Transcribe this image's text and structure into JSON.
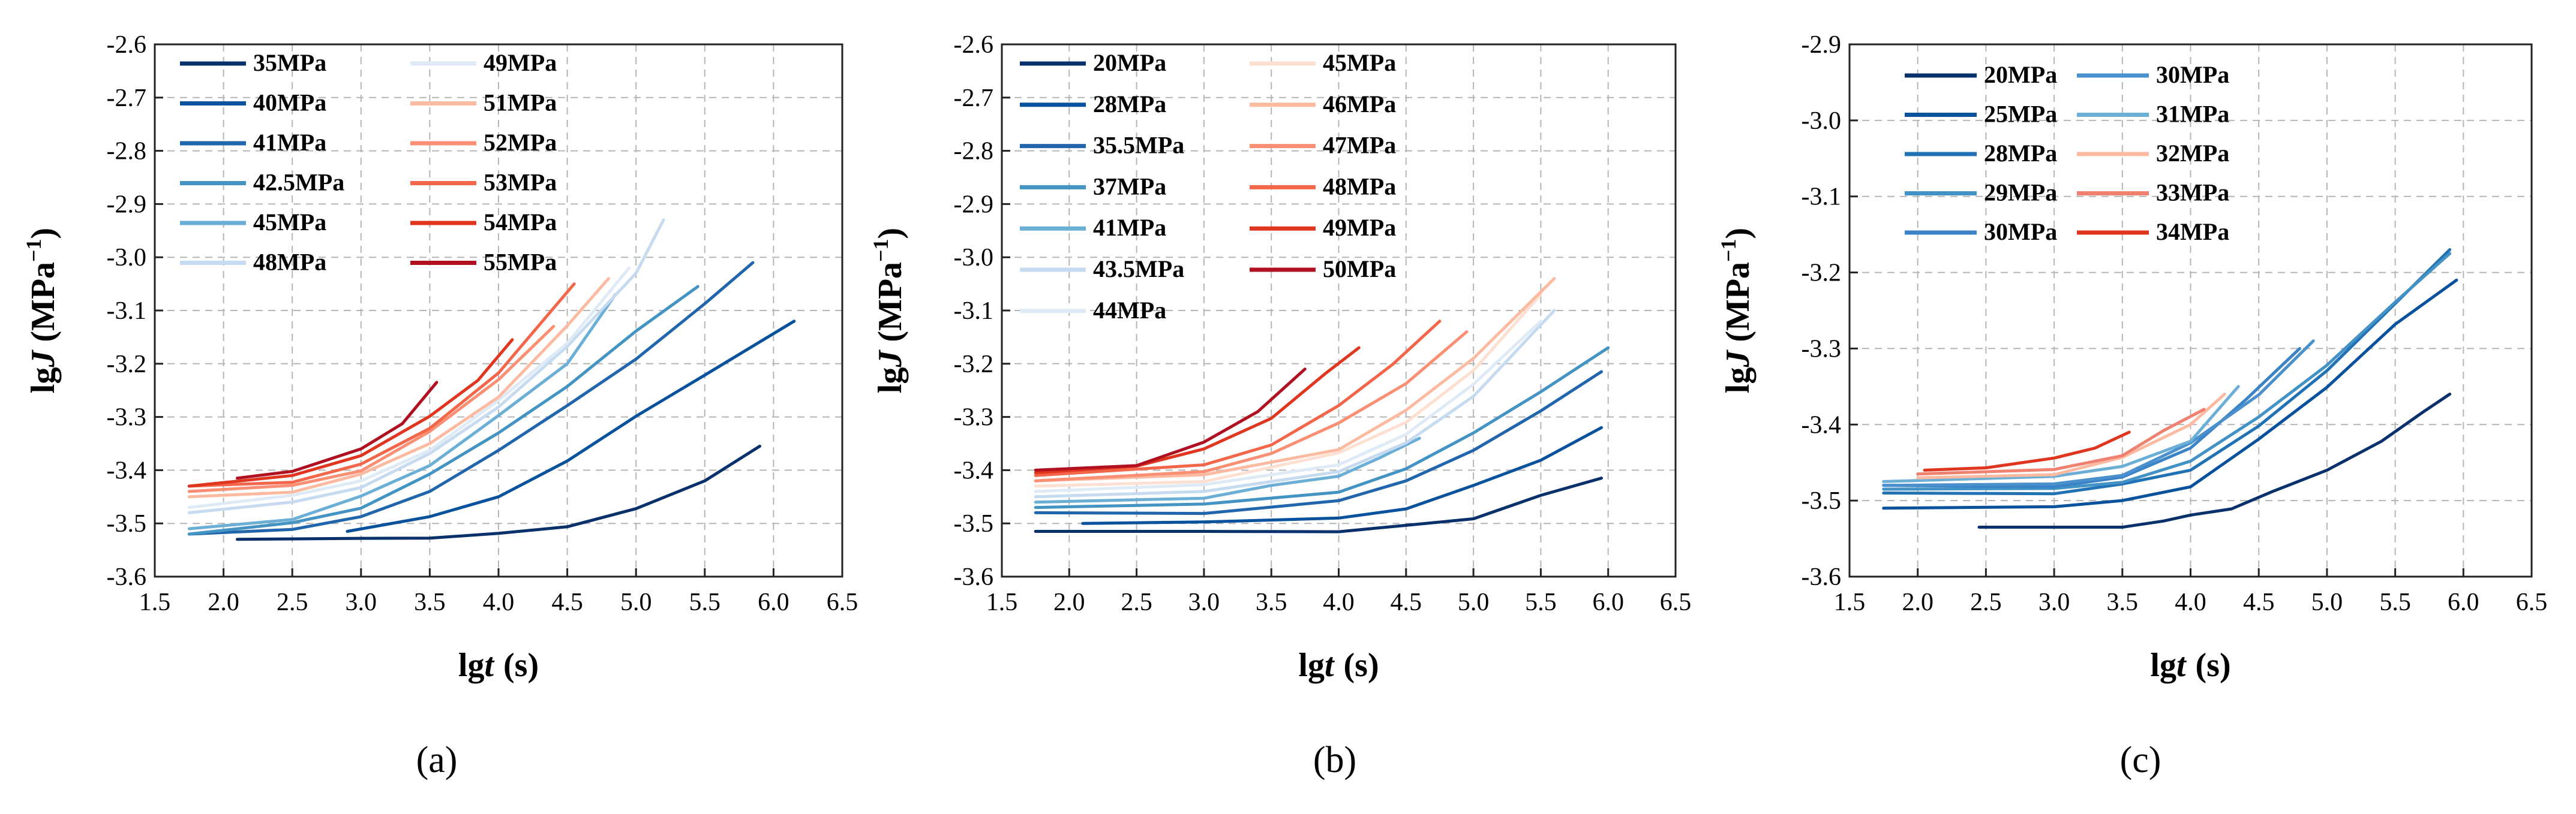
{
  "chart_data": [
    {
      "type": "line",
      "panel_label": "(a)",
      "xlabel_main": "lg",
      "xlabel_var": "t",
      "xlabel_unit": "(s)",
      "ylabel_main": "lg",
      "ylabel_var": "J",
      "ylabel_unit": "(MPa",
      "ylabel_exp": "−1",
      "ylabel_close": ")",
      "xlim": [
        1.5,
        6.5
      ],
      "ylim": [
        -3.6,
        -2.6
      ],
      "xticks": [
        "1.5",
        "2.0",
        "2.5",
        "3.0",
        "3.5",
        "4.0",
        "4.5",
        "5.0",
        "5.5",
        "6.0",
        "6.5"
      ],
      "yticks": [
        "-2.6",
        "-2.7",
        "-2.8",
        "-2.9",
        "-3.0",
        "-3.1",
        "-3.2",
        "-3.3",
        "-3.4",
        "-3.5",
        "-3.6"
      ],
      "legend_columns": 2,
      "legend_position": "top-left",
      "series": [
        {
          "name": "35MPa",
          "color": "#08306b",
          "x": [
            2.1,
            3.0,
            3.5,
            4.0,
            4.5,
            5.0,
            5.5,
            5.9
          ],
          "y": [
            -3.53,
            -3.528,
            -3.525,
            -3.52,
            -3.505,
            -3.475,
            -3.42,
            -3.355
          ]
        },
        {
          "name": "40MPa",
          "color": "#08519c",
          "x": [
            2.9,
            3.5,
            4.0,
            4.5,
            5.0,
            5.5,
            6.15
          ],
          "y": [
            -3.515,
            -3.49,
            -3.45,
            -3.38,
            -3.3,
            -3.22,
            -3.12
          ]
        },
        {
          "name": "41MPa",
          "color": "#2166ac",
          "x": [
            1.75,
            2.5,
            3.0,
            3.5,
            4.0,
            4.5,
            5.0,
            5.5,
            5.85
          ],
          "y": [
            -3.52,
            -3.51,
            -3.49,
            -3.44,
            -3.36,
            -3.28,
            -3.19,
            -3.09,
            -3.01
          ]
        },
        {
          "name": "42.5MPa",
          "color": "#4393c3",
          "x": [
            1.75,
            2.5,
            3.0,
            3.5,
            4.0,
            4.5,
            5.0,
            5.45
          ],
          "y": [
            -3.52,
            -3.5,
            -3.47,
            -3.41,
            -3.33,
            -3.24,
            -3.14,
            -3.055
          ]
        },
        {
          "name": "45MPa",
          "color": "#6baed6",
          "x": [
            1.75,
            2.5,
            3.0,
            3.5,
            4.0,
            4.5,
            4.85
          ],
          "y": [
            -3.51,
            -3.49,
            -3.45,
            -3.39,
            -3.3,
            -3.2,
            -3.07
          ]
        },
        {
          "name": "48MPa",
          "color": "#c6dbef",
          "x": [
            1.75,
            2.5,
            3.0,
            3.5,
            4.0,
            4.5,
            5.0,
            5.2
          ],
          "y": [
            -3.48,
            -3.46,
            -3.43,
            -3.37,
            -3.28,
            -3.17,
            -3.03,
            -2.93
          ]
        },
        {
          "name": "49MPa",
          "color": "#deebf7",
          "x": [
            1.75,
            2.5,
            3.0,
            3.5,
            4.0,
            4.5,
            4.95
          ],
          "y": [
            -3.47,
            -3.45,
            -3.42,
            -3.36,
            -3.27,
            -3.16,
            -3.02
          ]
        },
        {
          "name": "51MPa",
          "color": "#fcbba1",
          "x": [
            1.75,
            2.5,
            3.0,
            3.5,
            4.0,
            4.5,
            4.8
          ],
          "y": [
            -3.45,
            -3.44,
            -3.41,
            -3.35,
            -3.26,
            -3.13,
            -3.04
          ]
        },
        {
          "name": "52MPa",
          "color": "#fb8f73",
          "x": [
            1.75,
            2.5,
            3.0,
            3.5,
            4.0,
            4.4
          ],
          "y": [
            -3.44,
            -3.43,
            -3.4,
            -3.33,
            -3.23,
            -3.13
          ]
        },
        {
          "name": "53MPa",
          "color": "#f4664a",
          "x": [
            1.75,
            2.5,
            3.0,
            3.5,
            4.0,
            4.55
          ],
          "y": [
            -3.43,
            -3.42,
            -3.39,
            -3.32,
            -3.22,
            -3.05
          ]
        },
        {
          "name": "54MPa",
          "color": "#e0351e",
          "x": [
            1.75,
            2.5,
            3.0,
            3.5,
            3.85,
            4.1
          ],
          "y": [
            -3.43,
            -3.41,
            -3.37,
            -3.3,
            -3.23,
            -3.155
          ]
        },
        {
          "name": "55MPa",
          "color": "#b01020",
          "x": [
            2.1,
            2.5,
            3.0,
            3.3,
            3.55
          ],
          "y": [
            -3.415,
            -3.405,
            -3.36,
            -3.31,
            -3.235
          ]
        }
      ]
    },
    {
      "type": "line",
      "panel_label": "(b)",
      "xlabel_main": "lg",
      "xlabel_var": "t",
      "xlabel_unit": "(s)",
      "ylabel_main": "lg",
      "ylabel_var": "J",
      "ylabel_unit": "(MPa",
      "ylabel_exp": "−1",
      "ylabel_close": ")",
      "xlim": [
        1.5,
        6.5
      ],
      "ylim": [
        -3.6,
        -2.6
      ],
      "xticks": [
        "1.5",
        "2.0",
        "2.5",
        "3.0",
        "3.5",
        "4.0",
        "4.5",
        "5.0",
        "5.5",
        "6.0",
        "6.5"
      ],
      "yticks": [
        "-2.6",
        "-2.7",
        "-2.8",
        "-2.9",
        "-3.0",
        "-3.1",
        "-3.2",
        "-3.3",
        "-3.4",
        "-3.5",
        "-3.6"
      ],
      "legend_columns": 2,
      "legend_position": "top-left",
      "series": [
        {
          "name": "20MPa",
          "color": "#08306b",
          "x": [
            1.75,
            3.0,
            4.0,
            4.5,
            5.0,
            5.5,
            5.95
          ],
          "y": [
            -3.515,
            -3.515,
            -3.513,
            -3.505,
            -3.49,
            -3.45,
            -3.415
          ]
        },
        {
          "name": "28MPa",
          "color": "#08519c",
          "x": [
            2.1,
            3.0,
            4.0,
            4.5,
            5.0,
            5.5,
            5.95
          ],
          "y": [
            -3.5,
            -3.5,
            -3.49,
            -3.47,
            -3.43,
            -3.38,
            -3.32
          ]
        },
        {
          "name": "35.5MPa",
          "color": "#2166ac",
          "x": [
            1.75,
            3.0,
            4.0,
            4.5,
            5.0,
            5.5,
            5.95
          ],
          "y": [
            -3.48,
            -3.48,
            -3.46,
            -3.42,
            -3.36,
            -3.29,
            -3.215
          ]
        },
        {
          "name": "37MPa",
          "color": "#4393c3",
          "x": [
            1.75,
            3.0,
            4.0,
            4.5,
            5.0,
            5.5,
            6.0
          ],
          "y": [
            -3.47,
            -3.465,
            -3.44,
            -3.4,
            -3.33,
            -3.25,
            -3.17
          ]
        },
        {
          "name": "41MPa",
          "color": "#6baed6",
          "x": [
            1.75,
            3.0,
            3.5,
            4.0,
            4.3,
            4.6
          ],
          "y": [
            -3.46,
            -3.45,
            -3.43,
            -3.41,
            -3.38,
            -3.34
          ]
        },
        {
          "name": "43.5MPa",
          "color": "#c6dbef",
          "x": [
            1.75,
            3.0,
            4.0,
            4.5,
            5.0,
            5.6
          ],
          "y": [
            -3.45,
            -3.44,
            -3.4,
            -3.35,
            -3.26,
            -3.1
          ]
        },
        {
          "name": "44MPa",
          "color": "#deebf7",
          "x": [
            1.75,
            3.0,
            4.0,
            4.5,
            5.0,
            5.5
          ],
          "y": [
            -3.44,
            -3.43,
            -3.39,
            -3.33,
            -3.24,
            -3.12
          ]
        },
        {
          "name": "45MPa",
          "color": "#fee0d2",
          "x": [
            1.75,
            3.0,
            4.0,
            4.5,
            5.0,
            5.5
          ],
          "y": [
            -3.43,
            -3.42,
            -3.37,
            -3.31,
            -3.21,
            -3.07
          ]
        },
        {
          "name": "46MPa",
          "color": "#fcbba1",
          "x": [
            1.75,
            3.0,
            4.0,
            4.5,
            5.0,
            5.6
          ],
          "y": [
            -3.42,
            -3.41,
            -3.36,
            -3.29,
            -3.19,
            -3.04
          ]
        },
        {
          "name": "47MPa",
          "color": "#fb8f73",
          "x": [
            1.75,
            3.0,
            3.5,
            4.0,
            4.5,
            4.95
          ],
          "y": [
            -3.42,
            -3.4,
            -3.37,
            -3.31,
            -3.24,
            -3.14
          ]
        },
        {
          "name": "48MPa",
          "color": "#f4664a",
          "x": [
            1.75,
            3.0,
            3.5,
            4.0,
            4.4,
            4.75
          ],
          "y": [
            -3.41,
            -3.39,
            -3.35,
            -3.28,
            -3.2,
            -3.12
          ]
        },
        {
          "name": "49MPa",
          "color": "#e0351e",
          "x": [
            1.75,
            2.5,
            3.0,
            3.5,
            3.9,
            4.15
          ],
          "y": [
            -3.405,
            -3.395,
            -3.36,
            -3.3,
            -3.22,
            -3.17
          ]
        },
        {
          "name": "50MPa",
          "color": "#b01020",
          "x": [
            1.75,
            2.5,
            3.0,
            3.4,
            3.75
          ],
          "y": [
            -3.4,
            -3.39,
            -3.35,
            -3.29,
            -3.21
          ]
        }
      ]
    },
    {
      "type": "line",
      "panel_label": "(c)",
      "xlabel_main": "lg",
      "xlabel_var": "t",
      "xlabel_unit": "(s)",
      "ylabel_main": "lg",
      "ylabel_var": "J",
      "ylabel_unit": "(MPa",
      "ylabel_exp": "−1",
      "ylabel_close": ")",
      "xlim": [
        1.5,
        6.5
      ],
      "ylim": [
        -3.6,
        -2.9
      ],
      "xticks": [
        "1.5",
        "2.0",
        "2.5",
        "3.0",
        "3.5",
        "4.0",
        "4.5",
        "5.0",
        "5.5",
        "6.0",
        "6.5"
      ],
      "yticks": [
        "-2.9",
        "-3.0",
        "-3.1",
        "-3.2",
        "-3.3",
        "-3.4",
        "-3.5",
        "-3.6"
      ],
      "legend_columns": 2,
      "legend_position": "top-left",
      "series": [
        {
          "name": "20MPa",
          "color": "#08306b",
          "x": [
            2.45,
            3.5,
            3.8,
            4.0,
            4.3,
            4.6,
            5.0,
            5.4,
            5.7,
            5.9
          ],
          "y": [
            -3.535,
            -3.535,
            -3.525,
            -3.52,
            -3.51,
            -3.49,
            -3.46,
            -3.42,
            -3.385,
            -3.36
          ]
        },
        {
          "name": "25MPa",
          "color": "#08519c",
          "x": [
            1.75,
            3.0,
            3.5,
            4.0,
            4.5,
            5.0,
            5.5,
            5.95
          ],
          "y": [
            -3.51,
            -3.51,
            -3.5,
            -3.48,
            -3.42,
            -3.35,
            -3.27,
            -3.21
          ]
        },
        {
          "name": "28MPa",
          "color": "#2171b5",
          "x": [
            1.75,
            3.0,
            3.5,
            4.0,
            4.5,
            5.0,
            5.5,
            5.9
          ],
          "y": [
            -3.49,
            -3.49,
            -3.48,
            -3.46,
            -3.4,
            -3.33,
            -3.24,
            -3.17
          ]
        },
        {
          "name": "29MPa",
          "color": "#4292c6",
          "x": [
            1.75,
            3.0,
            3.5,
            4.0,
            4.5,
            5.0,
            5.5,
            5.9
          ],
          "y": [
            -3.485,
            -3.485,
            -3.475,
            -3.45,
            -3.39,
            -3.32,
            -3.24,
            -3.175
          ]
        },
        {
          "name": "30MPa",
          "color": "#3a83c6",
          "x": [
            1.75,
            3.0,
            3.5,
            4.0,
            4.4,
            4.8
          ],
          "y": [
            -3.48,
            -3.48,
            -3.47,
            -3.43,
            -3.37,
            -3.3
          ]
        },
        {
          "name": "30MPa",
          "color": "#4a90cc",
          "x": [
            1.75,
            3.0,
            3.5,
            4.0,
            4.5,
            4.9
          ],
          "y": [
            -3.48,
            -3.478,
            -3.465,
            -3.425,
            -3.36,
            -3.29
          ]
        },
        {
          "name": "31MPa",
          "color": "#6baed6",
          "x": [
            1.75,
            3.0,
            3.5,
            4.0,
            4.35
          ],
          "y": [
            -3.475,
            -3.47,
            -3.455,
            -3.42,
            -3.35
          ]
        },
        {
          "name": "32MPa",
          "color": "#fcbba1",
          "x": [
            2.0,
            3.0,
            3.5,
            4.0,
            4.25
          ],
          "y": [
            -3.47,
            -3.465,
            -3.445,
            -3.4,
            -3.36
          ]
        },
        {
          "name": "33MPa",
          "color": "#f08070",
          "x": [
            2.0,
            3.0,
            3.5,
            3.8,
            4.1
          ],
          "y": [
            -3.465,
            -3.46,
            -3.44,
            -3.41,
            -3.38
          ]
        },
        {
          "name": "34MPa",
          "color": "#e0351e",
          "x": [
            2.05,
            2.5,
            3.0,
            3.3,
            3.55
          ],
          "y": [
            -3.46,
            -3.455,
            -3.445,
            -3.43,
            -3.41
          ]
        }
      ]
    }
  ]
}
